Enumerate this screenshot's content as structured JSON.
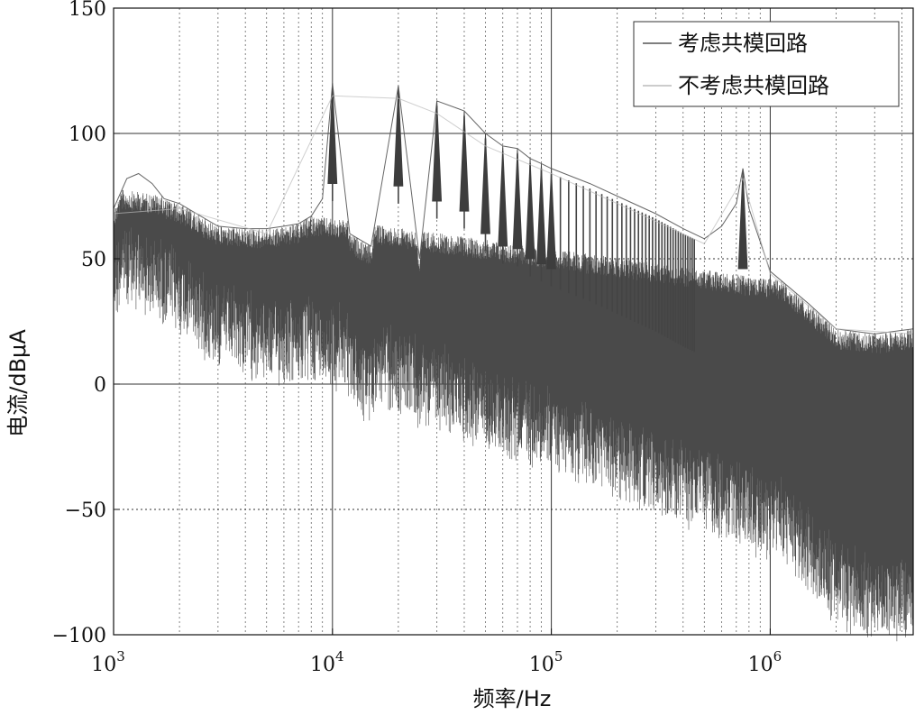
{
  "chart_data": {
    "type": "line",
    "xscale": "log",
    "xlim": [
      1000,
      4500000
    ],
    "ylim": [
      -100,
      150
    ],
    "xlabel": "频率/Hz",
    "ylabel": "电流/dBμA",
    "x_ticks": [
      {
        "base": "10",
        "exp": "3",
        "value": 1000
      },
      {
        "base": "10",
        "exp": "4",
        "value": 10000
      },
      {
        "base": "10",
        "exp": "5",
        "value": 100000
      },
      {
        "base": "10",
        "exp": "6",
        "value": 1000000
      }
    ],
    "y_ticks": [
      {
        "label": "150",
        "value": 150
      },
      {
        "label": "100",
        "value": 100
      },
      {
        "label": "50",
        "value": 50
      },
      {
        "label": "0",
        "value": 0
      },
      {
        "label": "−50",
        "value": -50
      },
      {
        "label": "−100",
        "value": -100
      }
    ],
    "grid": "on (major solid, minor dotted)",
    "legend_position": "top-right",
    "series": [
      {
        "name": "考虑共模回路",
        "color": "#555555",
        "points": [
          [
            1000,
            70
          ],
          [
            1150,
            82
          ],
          [
            1300,
            84
          ],
          [
            1500,
            80
          ],
          [
            1700,
            74
          ],
          [
            2000,
            72
          ],
          [
            2500,
            67
          ],
          [
            3000,
            63
          ],
          [
            4000,
            62
          ],
          [
            5000,
            62
          ],
          [
            6000,
            63
          ],
          [
            7000,
            64
          ],
          [
            8000,
            67
          ],
          [
            9000,
            74
          ],
          [
            10000,
            120
          ],
          [
            12000,
            60
          ],
          [
            15000,
            55
          ],
          [
            20000,
            119
          ],
          [
            25000,
            50
          ],
          [
            30000,
            113
          ],
          [
            40000,
            109
          ],
          [
            50000,
            100
          ],
          [
            60000,
            95
          ],
          [
            70000,
            94
          ],
          [
            80000,
            90
          ],
          [
            90000,
            88
          ],
          [
            100000,
            86
          ],
          [
            150000,
            80
          ],
          [
            200000,
            75
          ],
          [
            300000,
            68
          ],
          [
            400000,
            62
          ],
          [
            500000,
            58
          ],
          [
            600000,
            63
          ],
          [
            700000,
            72
          ],
          [
            750000,
            86
          ],
          [
            800000,
            70
          ],
          [
            1000000,
            45
          ],
          [
            1500000,
            32
          ],
          [
            2000000,
            22
          ],
          [
            3000000,
            20
          ],
          [
            4500000,
            22
          ]
        ]
      },
      {
        "name": "不考虑共模回路",
        "color": "#bbbbbb",
        "points": [
          [
            1000,
            68
          ],
          [
            2000,
            70
          ],
          [
            5000,
            60
          ],
          [
            10000,
            115
          ],
          [
            20000,
            114
          ],
          [
            30000,
            108
          ],
          [
            50000,
            95
          ],
          [
            100000,
            84
          ],
          [
            200000,
            72
          ],
          [
            500000,
            56
          ],
          [
            750000,
            82
          ],
          [
            1000000,
            44
          ],
          [
            2000000,
            22
          ],
          [
            4500000,
            20
          ]
        ]
      }
    ],
    "peaks": [
      {
        "x": 10000,
        "y": 120
      },
      {
        "x": 20000,
        "y": 119
      },
      {
        "x": 30000,
        "y": 113
      },
      {
        "x": 40000,
        "y": 109
      },
      {
        "x": 50000,
        "y": 100
      },
      {
        "x": 60000,
        "y": 95
      },
      {
        "x": 70000,
        "y": 94
      },
      {
        "x": 80000,
        "y": 90
      },
      {
        "x": 90000,
        "y": 88
      },
      {
        "x": 100000,
        "y": 86
      },
      {
        "x": 750000,
        "y": 86
      }
    ]
  }
}
